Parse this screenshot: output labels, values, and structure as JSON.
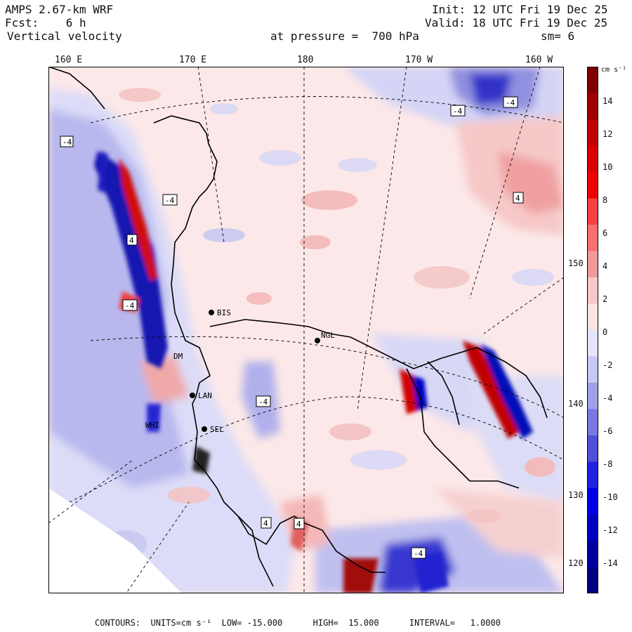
{
  "header": {
    "model": "AMPS 2.67-km WRF",
    "forecast": "Fcst:    6 h",
    "field": "Vertical velocity",
    "init": "Init: 12 UTC Fri 19 Dec 25",
    "valid": "Valid: 18 UTC Fri 19 Dec 25",
    "level": "at pressure =  700 hPa",
    "smoothing": "sm= 6"
  },
  "longitude_labels": [
    "160 E",
    "170 E",
    "180",
    "170 W",
    "160 W"
  ],
  "latitude_labels": [
    "150 W",
    "140 W",
    "130 W",
    "120 W"
  ],
  "colorbar": {
    "units": "cm s⁻¹",
    "ticks": [
      "14",
      "12",
      "10",
      "8",
      "6",
      "4",
      "2",
      "0",
      "-2",
      "-4",
      "-6",
      "-8",
      "-10",
      "-12",
      "-14"
    ],
    "colors": [
      "#800000",
      "#a00000",
      "#c00000",
      "#d80000",
      "#f00000",
      "#f84040",
      "#f87070",
      "#f09a9a",
      "#f8c8c8",
      "#fce4e4",
      "#e4e4fc",
      "#c8c8f4",
      "#a0a0e8",
      "#7878e0",
      "#5050d8",
      "#2020e0",
      "#0000e8",
      "#0000c0",
      "#0000a0",
      "#000080"
    ]
  },
  "stations": [
    "BIS",
    "NGL",
    "LAN",
    "SEL",
    "WHI",
    "DM"
  ],
  "contour_labels": [
    "-4",
    "-4",
    "-4",
    "-4",
    "4",
    "-4",
    "4",
    "4",
    "4",
    "-4",
    "-4"
  ],
  "footer": {
    "text": "CONTOURS:  UNITS=cm s⁻¹  LOW= -15.000      HIGH=  15.000      INTERVAL=   1.0000"
  }
}
